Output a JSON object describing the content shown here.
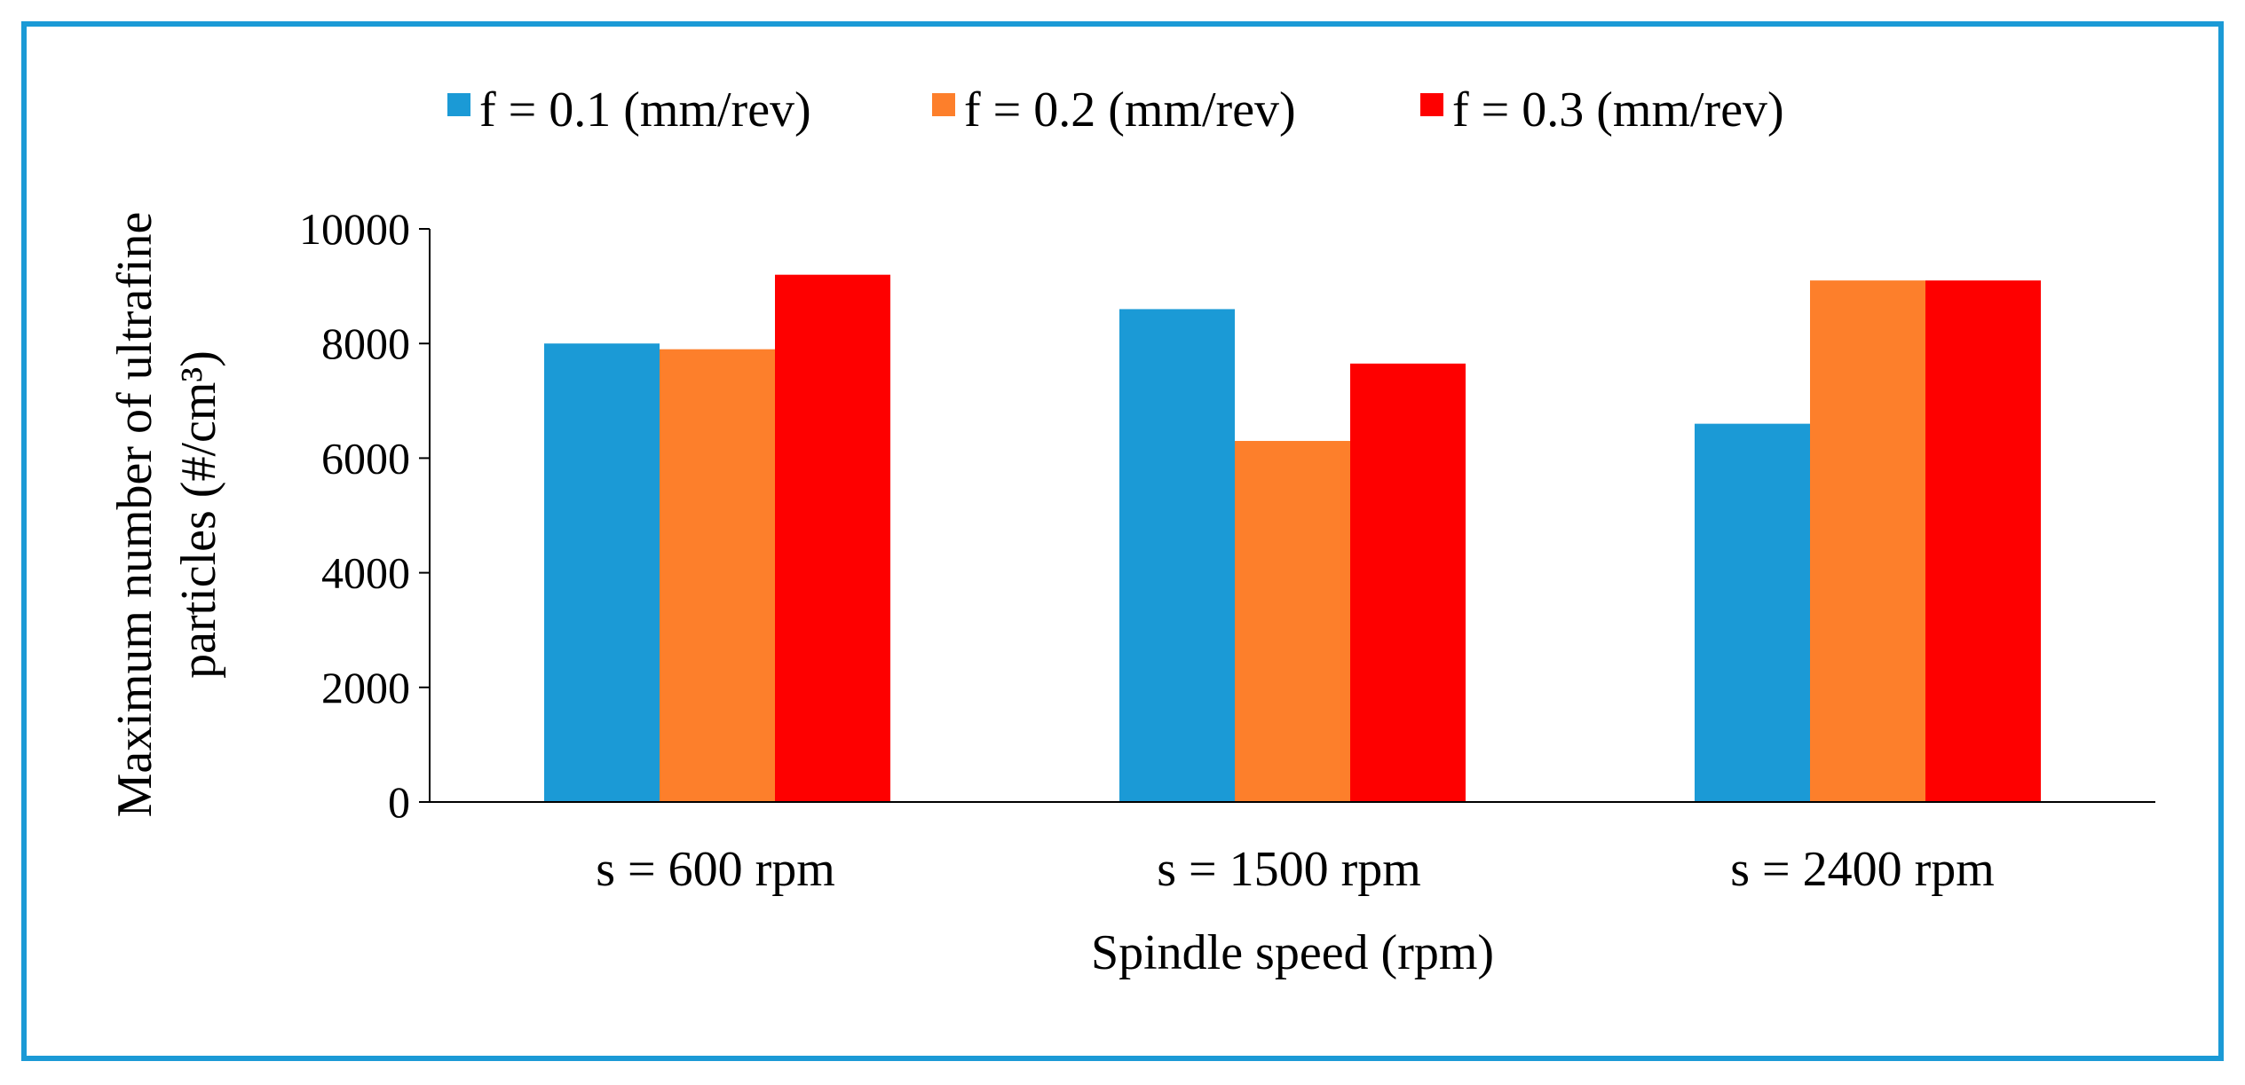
{
  "chart_data": {
    "type": "bar",
    "title": "",
    "categories": [
      "s = 600 rpm",
      "s = 1500  rpm",
      "s = 2400  rpm"
    ],
    "series": [
      {
        "name": "f = 0.1 (mm/rev)",
        "color": "#1b9ad6",
        "values": [
          8000,
          8600,
          6600
        ]
      },
      {
        "name": "f = 0.2 (mm/rev)",
        "color": "#fd7f2b",
        "values": [
          7900,
          6300,
          9100
        ]
      },
      {
        "name": "f = 0.3 (mm/rev)",
        "color": "#fe0000",
        "values": [
          9200,
          7650,
          9100
        ]
      }
    ],
    "xlabel": "Spindle speed (rpm)",
    "ylabel_line1": "Maximum  number  of ultrafine",
    "ylabel_line2": "particles  (#/cm³)",
    "ylim": [
      0,
      10000
    ],
    "yticks": [
      "0",
      "2000",
      "4000",
      "6000",
      "8000",
      "10000"
    ],
    "ytick_values": [
      0,
      2000,
      4000,
      6000,
      8000,
      10000
    ],
    "grid": false,
    "legend_position": "top-center"
  },
  "colors": {
    "frame": "#1b9ad6",
    "axis": "#000000"
  }
}
